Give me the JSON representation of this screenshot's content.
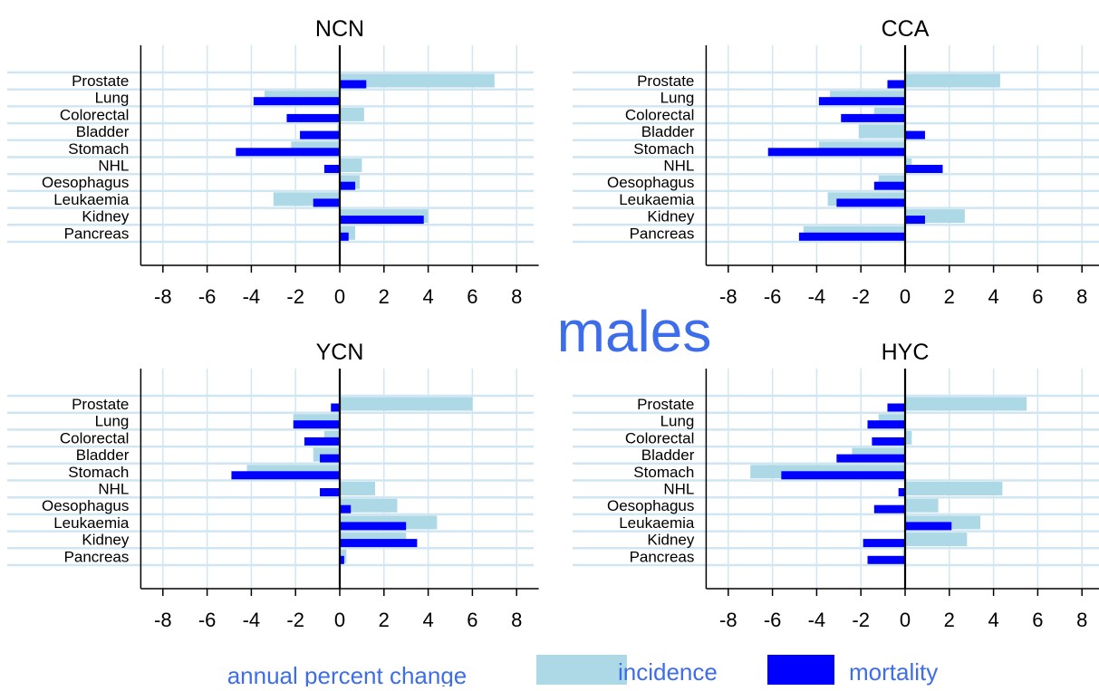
{
  "figure": {
    "center_title": "males",
    "legend": {
      "label": "annual percent change",
      "incidence": "incidence",
      "mortality": "mortality"
    }
  },
  "colors": {
    "incidence": "#add8e6",
    "mortality": "#0000ff",
    "gridline": "#d0e6f2",
    "accent_text": "#3d6de8",
    "axis": "#000000"
  },
  "chart_data": [
    {
      "type": "bar",
      "orientation": "horizontal",
      "title": "NCN",
      "categories": [
        "Prostate",
        "Lung",
        "Colorectal",
        "Bladder",
        "Stomach",
        "NHL",
        "Oesophagus",
        "Leukaemia",
        "Kidney",
        "Pancreas"
      ],
      "series": [
        {
          "name": "incidence",
          "values": [
            7.0,
            -3.4,
            1.1,
            -0.1,
            -2.2,
            1.0,
            0.9,
            -3.0,
            4.0,
            0.7
          ]
        },
        {
          "name": "mortality",
          "values": [
            1.2,
            -3.9,
            -2.4,
            -1.8,
            -4.7,
            -0.7,
            0.7,
            -1.2,
            3.8,
            0.4
          ]
        }
      ],
      "xlim": [
        -9,
        9
      ],
      "xticks": [
        -8,
        -6,
        -4,
        -2,
        0,
        2,
        4,
        6,
        8
      ],
      "grid": true
    },
    {
      "type": "bar",
      "orientation": "horizontal",
      "title": "CCA",
      "categories": [
        "Prostate",
        "Lung",
        "Colorectal",
        "Bladder",
        "Stomach",
        "NHL",
        "Oesophagus",
        "Leukaemia",
        "Kidney",
        "Pancreas"
      ],
      "series": [
        {
          "name": "incidence",
          "values": [
            4.3,
            -3.4,
            -1.4,
            -2.1,
            -3.9,
            0.3,
            -1.2,
            -3.5,
            2.7,
            -4.6
          ]
        },
        {
          "name": "mortality",
          "values": [
            -0.8,
            -3.9,
            -2.9,
            0.9,
            -6.2,
            1.7,
            -1.4,
            -3.1,
            0.9,
            -4.8
          ]
        }
      ],
      "xlim": [
        -9,
        9
      ],
      "xticks": [
        -8,
        -6,
        -4,
        -2,
        0,
        2,
        4,
        6,
        8
      ],
      "grid": true
    },
    {
      "type": "bar",
      "orientation": "horizontal",
      "title": "YCN",
      "categories": [
        "Prostate",
        "Lung",
        "Colorectal",
        "Bladder",
        "Stomach",
        "NHL",
        "Oesophagus",
        "Leukaemia",
        "Kidney",
        "Pancreas"
      ],
      "series": [
        {
          "name": "incidence",
          "values": [
            6.0,
            -2.1,
            -0.7,
            -1.2,
            -4.2,
            1.6,
            2.6,
            4.4,
            3.0,
            0.3
          ]
        },
        {
          "name": "mortality",
          "values": [
            -0.4,
            -2.1,
            -1.6,
            -0.9,
            -4.9,
            -0.9,
            0.5,
            3.0,
            3.5,
            0.2
          ]
        }
      ],
      "xlim": [
        -9,
        9
      ],
      "xticks": [
        -8,
        -6,
        -4,
        -2,
        0,
        2,
        4,
        6,
        8
      ],
      "grid": true
    },
    {
      "type": "bar",
      "orientation": "horizontal",
      "title": "HYC",
      "categories": [
        "Prostate",
        "Lung",
        "Colorectal",
        "Bladder",
        "Stomach",
        "NHL",
        "Oesophagus",
        "Leukaemia",
        "Kidney",
        "Pancreas"
      ],
      "series": [
        {
          "name": "incidence",
          "values": [
            5.5,
            -1.2,
            0.3,
            -2.4,
            -7.0,
            4.4,
            1.5,
            3.4,
            2.8,
            -0.1
          ]
        },
        {
          "name": "mortality",
          "values": [
            -0.8,
            -1.7,
            -1.5,
            -3.1,
            -5.6,
            -0.3,
            -1.4,
            2.1,
            -1.9,
            -1.7
          ]
        }
      ],
      "xlim": [
        -9,
        9
      ],
      "xticks": [
        -8,
        -6,
        -4,
        -2,
        0,
        2,
        4,
        6,
        8
      ],
      "grid": true
    }
  ]
}
